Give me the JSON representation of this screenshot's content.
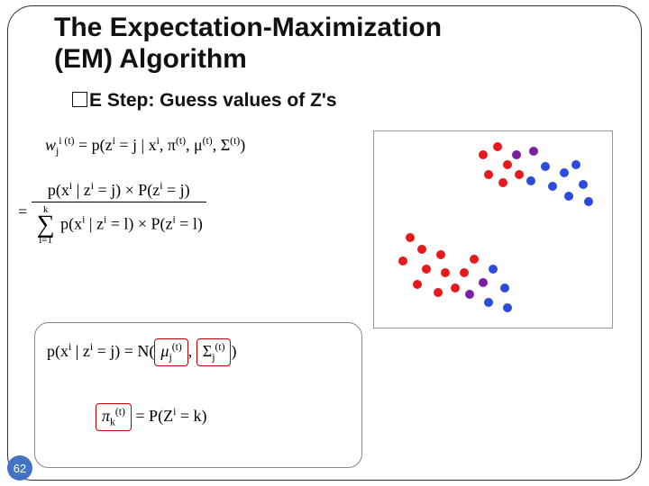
{
  "title_line1": "The Expectation-Maximization",
  "title_line2": "(EM) Algorithm",
  "subtitle": "E Step: Guess values of Z's",
  "page_number": "62",
  "formulas": {
    "f1_lhs": "w",
    "f1_sup_i": "i (t)",
    "f1_sub_j": "j",
    "f1_eq": " = p(z",
    "f1_eq2": " = j | x",
    "f1_eq3": ", π",
    "f1_eq4": ", μ",
    "f1_eq5": ", Σ",
    "f1_eq6": ")",
    "sup_i": "i",
    "sup_t": "(t)",
    "f2_pre": "= ",
    "f2_num_a": "p(x",
    "f2_num_b": " | z",
    "f2_num_c": " = j) × P(z",
    "f2_num_d": " = j)",
    "f2_den_sum_top": "k",
    "f2_den_sum_bot": "l=1",
    "f2_den_a": "p(x",
    "f2_den_b": " | z",
    "f2_den_c": " = l) × P(z",
    "f2_den_d": " = l)",
    "f3_a": "p(x",
    "f3_b": " | z",
    "f3_c": " = j) = N(",
    "mu_label": "μ",
    "mu_sub": "j",
    "mu_sup": "(t)",
    "comma": ", ",
    "sigma_label": "Σ",
    "sigma_sub": "j",
    "sigma_sup": "(t)",
    "f3_end": ")",
    "pi_label": "π",
    "pi_sub": "k",
    "pi_sup": "(t)",
    "f4_rhs": " = P(Z",
    "f4_end": " = k)"
  },
  "scatter": {
    "border_color": "#999999",
    "background": "#ffffff",
    "dot_radius": 5,
    "colors": {
      "red": "#e41a1c",
      "blue": "#2b4bdd",
      "purple": "#7a1fa2"
    },
    "points": [
      {
        "x": 0.46,
        "y": 0.12,
        "c": "red"
      },
      {
        "x": 0.52,
        "y": 0.08,
        "c": "red"
      },
      {
        "x": 0.56,
        "y": 0.17,
        "c": "red"
      },
      {
        "x": 0.48,
        "y": 0.22,
        "c": "red"
      },
      {
        "x": 0.54,
        "y": 0.26,
        "c": "red"
      },
      {
        "x": 0.61,
        "y": 0.22,
        "c": "red"
      },
      {
        "x": 0.6,
        "y": 0.12,
        "c": "purple"
      },
      {
        "x": 0.67,
        "y": 0.1,
        "c": "purple"
      },
      {
        "x": 0.66,
        "y": 0.25,
        "c": "blue"
      },
      {
        "x": 0.72,
        "y": 0.18,
        "c": "blue"
      },
      {
        "x": 0.75,
        "y": 0.28,
        "c": "blue"
      },
      {
        "x": 0.8,
        "y": 0.21,
        "c": "blue"
      },
      {
        "x": 0.85,
        "y": 0.17,
        "c": "blue"
      },
      {
        "x": 0.88,
        "y": 0.27,
        "c": "blue"
      },
      {
        "x": 0.82,
        "y": 0.33,
        "c": "blue"
      },
      {
        "x": 0.9,
        "y": 0.36,
        "c": "blue"
      },
      {
        "x": 0.15,
        "y": 0.54,
        "c": "red"
      },
      {
        "x": 0.2,
        "y": 0.6,
        "c": "red"
      },
      {
        "x": 0.12,
        "y": 0.66,
        "c": "red"
      },
      {
        "x": 0.22,
        "y": 0.7,
        "c": "red"
      },
      {
        "x": 0.28,
        "y": 0.63,
        "c": "red"
      },
      {
        "x": 0.3,
        "y": 0.72,
        "c": "red"
      },
      {
        "x": 0.18,
        "y": 0.78,
        "c": "red"
      },
      {
        "x": 0.27,
        "y": 0.82,
        "c": "red"
      },
      {
        "x": 0.34,
        "y": 0.8,
        "c": "red"
      },
      {
        "x": 0.38,
        "y": 0.72,
        "c": "red"
      },
      {
        "x": 0.42,
        "y": 0.65,
        "c": "red"
      },
      {
        "x": 0.4,
        "y": 0.83,
        "c": "purple"
      },
      {
        "x": 0.46,
        "y": 0.77,
        "c": "purple"
      },
      {
        "x": 0.5,
        "y": 0.7,
        "c": "blue"
      },
      {
        "x": 0.48,
        "y": 0.87,
        "c": "blue"
      },
      {
        "x": 0.55,
        "y": 0.8,
        "c": "blue"
      },
      {
        "x": 0.56,
        "y": 0.9,
        "c": "blue"
      }
    ]
  }
}
